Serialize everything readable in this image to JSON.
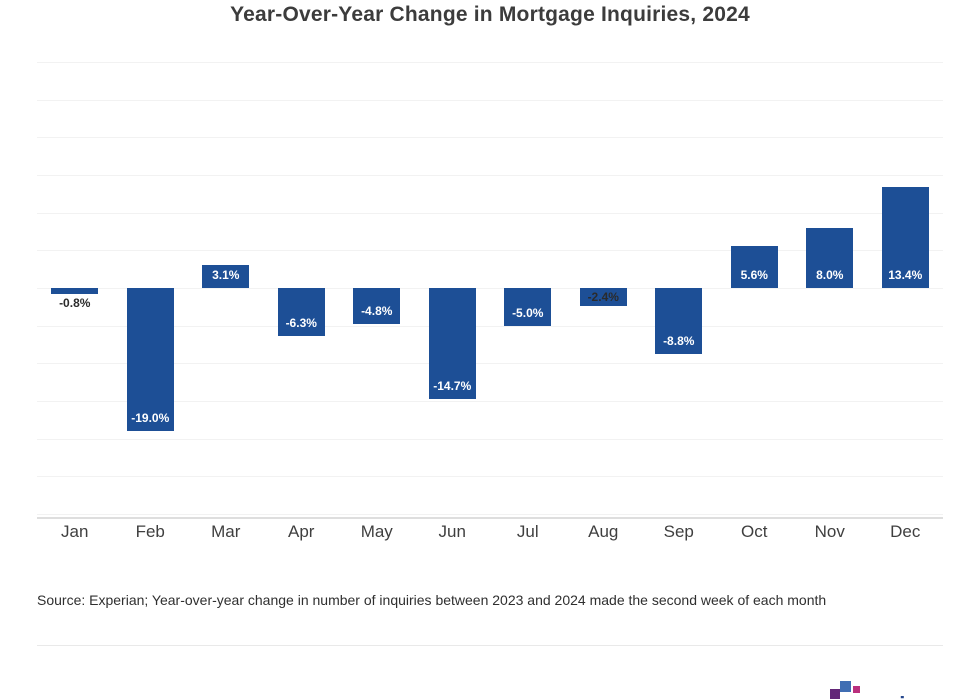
{
  "title": "Year-Over-Year Change in Mortgage Inquiries, 2024",
  "source_note": "Source: Experian; Year-over-year change in number of inquiries between 2023 and 2024 made the second week of each month",
  "logo": {
    "text": "experian",
    "square_purple": "#632678",
    "square_blue": "#406eb3",
    "square_magenta": "#ba2f7d",
    "text_color": "#26478d"
  },
  "chart_data": {
    "type": "bar",
    "title": "Year-Over-Year Change in Mortgage Inquiries, 2024",
    "categories": [
      "Jan",
      "Feb",
      "Mar",
      "Apr",
      "May",
      "Jun",
      "Jul",
      "Aug",
      "Sep",
      "Oct",
      "Nov",
      "Dec"
    ],
    "values": [
      -0.8,
      -19.0,
      3.1,
      -6.3,
      -4.8,
      -14.7,
      -5.0,
      -2.4,
      -8.8,
      5.6,
      8.0,
      13.4
    ],
    "value_labels": [
      "-0.8%",
      "-19.0%",
      "3.1%",
      "-6.3%",
      "-4.8%",
      "-14.7%",
      "-5.0%",
      "-2.4%",
      "-8.8%",
      "5.6%",
      "8.0%",
      "13.4%"
    ],
    "unit": "%",
    "xlabel": "",
    "ylabel": "",
    "ylim": [
      -30,
      30
    ],
    "grid": "on",
    "legend": "none",
    "bar_color": "#1d4f96",
    "label_color_inside": "#ffffff",
    "label_color_outside": "#2b2b2b"
  }
}
